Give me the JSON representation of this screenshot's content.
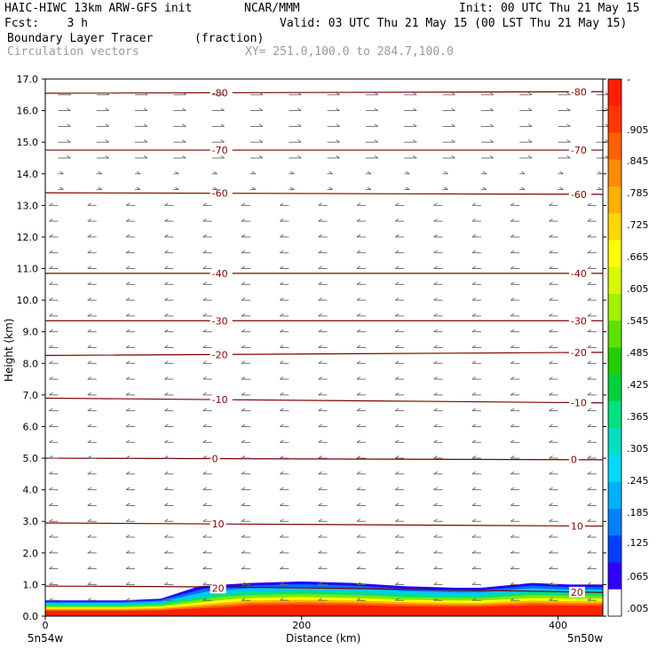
{
  "header": {
    "model": "HAIC-HIWC 13km ARW-GFS init",
    "org": "NCAR/MMM",
    "init": "Init: 00 UTC Thu 21 May 15",
    "fcst": "Fcst:    3 h",
    "valid": "Valid: 03 UTC Thu 21 May 15 (00 LST Thu 21 May 15)",
    "field": "Boundary Layer Tracer",
    "units": "(fraction)",
    "vectors": "Circulation vectors",
    "xy": "XY= 251.0,100.0 to 284.7,100.0"
  },
  "chart_data": {
    "type": "heatmap",
    "ylabel": "Height (km)",
    "xlabel": "Distance (km)",
    "ylim": [
      0,
      17
    ],
    "xlim": [
      0,
      435
    ],
    "y_ticks": [
      "0.0",
      "1.0",
      "2.0",
      "3.0",
      "4.0",
      "5.0",
      "6.0",
      "7.0",
      "8.0",
      "9.0",
      "10.0",
      "11.0",
      "12.0",
      "13.0",
      "14.0",
      "15.0",
      "16.0",
      "17.0"
    ],
    "x_ticks": [
      "0",
      "200",
      "400"
    ],
    "x_end_labels": [
      "5n54w",
      "5n50w"
    ],
    "colorbar_labels": [
      ".005",
      ".065",
      ".125",
      ".185",
      ".245",
      ".305",
      ".365",
      ".425",
      ".485",
      ".545",
      ".605",
      ".665",
      ".725",
      ".785",
      ".845",
      ".905",
      "-"
    ],
    "colorbar_colors": [
      "#ffffff",
      "#3000ff",
      "#0040ff",
      "#0080ff",
      "#00b0ff",
      "#00d8ff",
      "#00e0c0",
      "#00e080",
      "#00d040",
      "#20d000",
      "#60e000",
      "#a0f000",
      "#d8f800",
      "#ffff00",
      "#ffd800",
      "#ffb000",
      "#ff8c00",
      "#ff6000",
      "#ff3800",
      "#ff2000"
    ],
    "temperature_contours": [
      {
        "label": "20",
        "y_left": 0.95,
        "y_right": 0.75,
        "label_x": [
          130,
          410
        ]
      },
      {
        "label": "10",
        "y_left": 2.95,
        "y_right": 2.85,
        "label_x": [
          130,
          410
        ]
      },
      {
        "label": "0",
        "y_left": 5.0,
        "y_right": 4.95,
        "label_x": [
          130,
          410
        ]
      },
      {
        "label": "-10",
        "y_left": 6.9,
        "y_right": 6.75,
        "label_x": [
          130,
          410
        ]
      },
      {
        "label": "-20",
        "y_left": 8.25,
        "y_right": 8.35,
        "label_x": [
          130,
          410
        ]
      },
      {
        "label": "-30",
        "y_left": 9.35,
        "y_right": 9.35,
        "label_x": [
          130,
          410
        ]
      },
      {
        "label": "-40",
        "y_left": 10.85,
        "y_right": 10.85,
        "label_x": [
          130,
          410
        ]
      },
      {
        "label": "-60",
        "y_left": 13.4,
        "y_right": 13.35,
        "label_x": [
          130,
          410
        ]
      },
      {
        "label": "-70",
        "y_left": 14.75,
        "y_right": 14.75,
        "label_x": [
          130,
          410
        ]
      },
      {
        "label": "-80",
        "y_left": 16.55,
        "y_right": 16.6,
        "label_x": [
          130,
          410
        ]
      }
    ],
    "tracer_region": {
      "top_height_km": [
        0.5,
        0.5,
        0.55,
        0.95,
        1.05,
        1.1,
        1.05,
        0.95,
        0.9,
        0.9,
        1.05,
        1.0,
        1.0
      ],
      "x_km": [
        0,
        60,
        90,
        120,
        160,
        200,
        240,
        280,
        320,
        340,
        380,
        410,
        435
      ]
    }
  }
}
